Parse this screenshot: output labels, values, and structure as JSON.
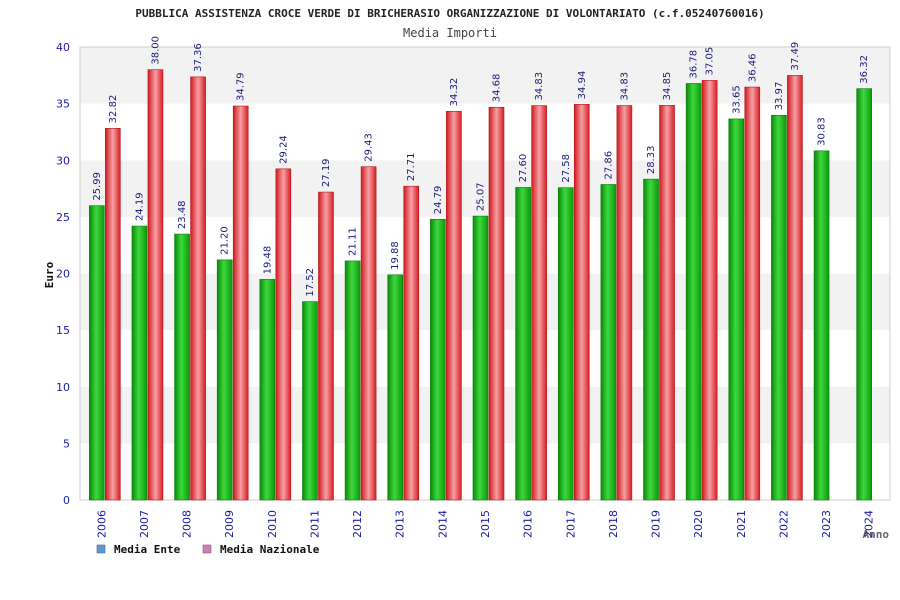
{
  "chart_data": {
    "type": "bar",
    "title": "PUBBLICA ASSISTENZA CROCE VERDE DI BRICHERASIO ORGANIZZAZIONE DI VOLONTARIATO (c.f.05240760016)",
    "subtitle": "Media Importi",
    "xlabel": "Anno",
    "ylabel": "Euro",
    "ylim": [
      0,
      40
    ],
    "yticks": [
      0,
      5,
      10,
      15,
      20,
      25,
      30,
      35,
      40
    ],
    "grid": true,
    "legend_position": "bottom-left",
    "categories": [
      "2006",
      "2007",
      "2008",
      "2009",
      "2010",
      "2011",
      "2012",
      "2013",
      "2014",
      "2015",
      "2016",
      "2017",
      "2018",
      "2019",
      "2020",
      "2021",
      "2022",
      "2023",
      "2024"
    ],
    "series": [
      {
        "name": "Media Ente",
        "bar_color": "#12b012",
        "legend_color": "#5b9bd5",
        "values": [
          25.99,
          24.19,
          23.48,
          21.2,
          19.48,
          17.52,
          21.11,
          19.88,
          24.79,
          25.07,
          27.6,
          27.58,
          27.86,
          28.33,
          36.78,
          33.65,
          33.97,
          30.83,
          36.32
        ],
        "labels": [
          "25.99",
          "24.19",
          "23.48",
          "21.20",
          "19.48",
          "17.52",
          "21.11",
          "19.88",
          "24.79",
          "25.07",
          "27.60",
          "27.58",
          "27.86",
          "28.33",
          "36.78",
          "33.65",
          "33.97",
          "30.83",
          "36.32"
        ]
      },
      {
        "name": "Media Nazionale",
        "bar_color": "#e8242a",
        "legend_color": "#d87ab8",
        "values": [
          32.82,
          38.0,
          37.36,
          34.79,
          29.24,
          27.19,
          29.43,
          27.71,
          34.32,
          34.68,
          34.83,
          34.94,
          34.83,
          34.85,
          37.05,
          36.46,
          37.49,
          null,
          null
        ],
        "labels": [
          "32.82",
          "38.00",
          "37.36",
          "34.79",
          "29.24",
          "27.19",
          "29.43",
          "27.71",
          "34.32",
          "34.68",
          "34.83",
          "34.94",
          "34.83",
          "34.85",
          "37.05",
          "36.46",
          "37.49",
          null,
          null
        ]
      }
    ]
  }
}
